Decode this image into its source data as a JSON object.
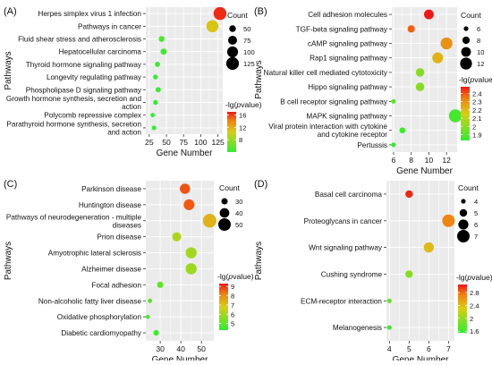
{
  "chart_data": [
    {
      "type": "scatter",
      "panel": "(A)",
      "xlabel": "Gene Number",
      "ylabel": "Pathways",
      "xlim": [
        20,
        132
      ],
      "xticks": [
        25,
        50,
        75,
        100,
        125
      ],
      "categories": [
        "Herpes simplex virus 1 infection",
        "Pathways in cancer",
        "Fluid shear stress and atherosclerosis",
        "Hepatocellular carcinoma",
        "Thyroid hormone signaling pathway",
        "Longevity regulating pathway",
        "Phospholipase D signaling pathway",
        "Growth hormone synthesis, secretion and action",
        "Polycomb repressive complex",
        "Parathyroid hormone synthesis, secretion and action"
      ],
      "category_lines": [
        [
          "Herpes simplex virus 1 infection"
        ],
        [
          "Pathways in cancer"
        ],
        [
          "Fluid shear stress and atherosclerosis"
        ],
        [
          "Hepatocellular carcinoma"
        ],
        [
          "Thyroid hormone signaling pathway"
        ],
        [
          "Longevity regulating pathway"
        ],
        [
          "Phospholipase D signaling pathway"
        ],
        [
          "Growth hormone synthesis, secretion and",
          "action"
        ],
        [
          "Polycomb repressive complex"
        ],
        [
          "Parathyroid hormone synthesis, secretion",
          "and action"
        ]
      ],
      "x": [
        128,
        117,
        43,
        46,
        37,
        34,
        38,
        34,
        30,
        32
      ],
      "neg_log10_p": [
        16.5,
        11.0,
        5.0,
        4.5,
        4.3,
        4.2,
        4.2,
        4.0,
        4.0,
        4.0
      ],
      "size_legend": {
        "title": "Count",
        "values": [
          50,
          75,
          100,
          125
        ]
      },
      "color_legend": {
        "title_prefix": "-lg(",
        "title_italic": "p",
        "title_suffix": "value)",
        "range": [
          4,
          17
        ],
        "ticks": [
          16,
          12,
          8
        ]
      }
    },
    {
      "type": "scatter",
      "panel": "(B)",
      "xlabel": "Gene Number",
      "ylabel": "Pathways",
      "xlim": [
        5.8,
        13.2
      ],
      "xticks": [
        6,
        8,
        10,
        12
      ],
      "categories": [
        "Cell adhesion molecules",
        "TGF-beta signaling pathway",
        "cAMP signaling pathway",
        "Rap1 signaling pathway",
        "Natural killer cell mediated cytotoxicity",
        "Hippo signaling pathway",
        "B cell receptor signaling pathway",
        "MAPK signaling pathway",
        "Viral protein interaction with cytokine and cytokine receptor",
        "Pertussis"
      ],
      "category_lines": [
        [
          "Cell adhesion molecules"
        ],
        [
          "TGF-beta signaling pathway"
        ],
        [
          "cAMP signaling pathway"
        ],
        [
          "Rap1 signaling pathway"
        ],
        [
          "Natural killer cell mediated cytotoxicity"
        ],
        [
          "Hippo signaling pathway"
        ],
        [
          "B cell receptor signaling pathway"
        ],
        [
          "MAPK signaling pathway"
        ],
        [
          "Viral protein interaction with cytokine",
          "and cytokine receptor"
        ],
        [
          "Pertussis"
        ]
      ],
      "x": [
        10,
        8,
        12,
        11,
        9,
        9,
        6,
        13,
        7,
        6
      ],
      "neg_log10_p": [
        2.48,
        2.38,
        2.3,
        2.22,
        2.0,
        2.0,
        1.92,
        1.87,
        1.86,
        1.84
      ],
      "size_legend": {
        "title": "Count",
        "values": [
          6,
          8,
          10,
          12
        ]
      },
      "color_legend": {
        "title_prefix": "-lg(",
        "title_italic": "p",
        "title_suffix": "value)",
        "range": [
          1.83,
          2.48
        ],
        "ticks": [
          2.4,
          2.3,
          2.2,
          2.1,
          2.0,
          1.9
        ]
      }
    },
    {
      "type": "scatter",
      "panel": "(C)",
      "xlabel": "Gene Number",
      "ylabel": "Pathways",
      "xlim": [
        23,
        56
      ],
      "xticks": [
        30,
        40,
        50
      ],
      "categories": [
        "Parkinson disease",
        "Huntington disease",
        "Pathways of neurodegeneration - multiple diseases",
        "Prion disease",
        "Amyotrophic lateral sclerosis",
        "Alzheimer disease",
        "Focal adhesion",
        "Non-alcoholic fatty liver disease",
        "Oxidative phosphorylation",
        "Diabetic cardiomyopathy"
      ],
      "category_lines": [
        [
          "Parkinson disease"
        ],
        [
          "Huntington disease"
        ],
        [
          "Pathways of neurodegeneration - multiple",
          "diseases"
        ],
        [
          "Prion disease"
        ],
        [
          "Amyotrophic lateral sclerosis"
        ],
        [
          "Alzheimer disease"
        ],
        [
          "Focal adhesion"
        ],
        [
          "Non-alcoholic fatty liver disease"
        ],
        [
          "Oxidative phosphorylation"
        ],
        [
          "Diabetic cardiomyopathy"
        ]
      ],
      "x": [
        42,
        44,
        54,
        38,
        45,
        45,
        30,
        25,
        24,
        28
      ],
      "neg_log10_p": [
        8.7,
        8.6,
        7.3,
        6.2,
        6.0,
        5.9,
        5.0,
        4.8,
        4.6,
        4.5
      ],
      "size_legend": {
        "title": "Count",
        "values": [
          30,
          40,
          50
        ]
      },
      "color_legend": {
        "title_prefix": "-lg(",
        "title_italic": "p",
        "title_suffix": "value)",
        "range": [
          4.3,
          9.3
        ],
        "ticks": [
          9,
          8,
          7,
          6,
          5
        ]
      }
    },
    {
      "type": "scatter",
      "panel": "(D)",
      "xlabel": "Gene Number",
      "ylabel": "Pathways",
      "xlim": [
        3.85,
        7.3
      ],
      "xticks": [
        4,
        5,
        6,
        7
      ],
      "categories": [
        "Basal cell carcinoma",
        "Proteoglycans in cancer",
        "Wnt signaling pathway",
        "Cushing syndrome",
        "ECM-receptor interaction",
        "Melanogenesis"
      ],
      "category_lines": [
        [
          "Basal cell carcinoma"
        ],
        [
          "Proteoglycans in cancer"
        ],
        [
          "Wnt signaling pathway"
        ],
        [
          "Cushing syndrome"
        ],
        [
          "ECM-receptor interaction"
        ],
        [
          "Melanogenesis"
        ]
      ],
      "x": [
        5,
        7,
        6,
        5,
        4,
        4
      ],
      "neg_log10_p": [
        3.0,
        2.7,
        2.4,
        1.95,
        1.8,
        1.6
      ],
      "size_legend": {
        "title": "Count",
        "values": [
          4,
          5,
          6,
          7
        ]
      },
      "color_legend": {
        "title_prefix": "-lg(",
        "title_italic": "p",
        "title_suffix": "value)",
        "range": [
          1.55,
          3.05
        ],
        "ticks": [
          2.8,
          2.4,
          2.0,
          1.6
        ]
      }
    }
  ]
}
